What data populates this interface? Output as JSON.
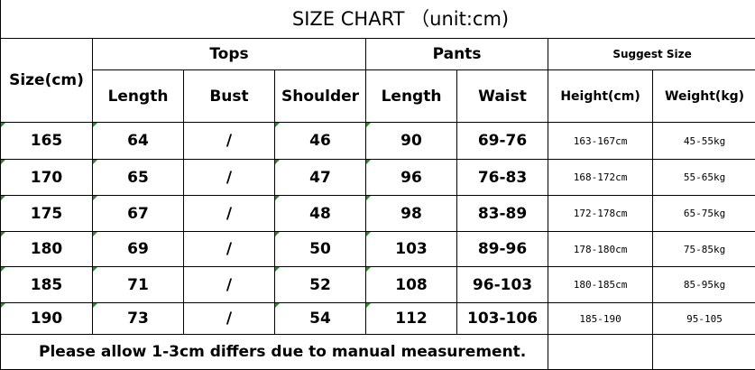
{
  "title": "SIZE CHART （unit:cm)",
  "headers": {
    "size": "Size(cm)",
    "tops": "Tops",
    "pants": "Pants",
    "suggest": "Suggest Size",
    "tops_length": "Length",
    "bust": "Bust",
    "shoulder": "Shoulder",
    "pants_length": "Length",
    "waist": "Waist",
    "height": "Height(cm)",
    "weight": "Weight(kg)"
  },
  "rows": [
    [
      "165",
      "64",
      "/",
      "46",
      "90",
      "69-76",
      "163-167cm",
      "45-55kg"
    ],
    [
      "170",
      "65",
      "/",
      "47",
      "96",
      "76-83",
      "168-172cm",
      "55-65kg"
    ],
    [
      "175",
      "67",
      "/",
      "48",
      "98",
      "83-89",
      "172-178cm",
      "65-75kg"
    ],
    [
      "180",
      "69",
      "/",
      "50",
      "103",
      "89-96",
      "178-180cm",
      "75-85kg"
    ],
    [
      "185",
      "71",
      "/",
      "52",
      "108",
      "96-103",
      "180-185cm",
      "85-95kg"
    ],
    [
      "190",
      "73",
      "/",
      "54",
      "112",
      "103-106",
      "185-190",
      "95-105"
    ]
  ],
  "footer": "Please allow 1-3cm differs due to manual measurement."
}
